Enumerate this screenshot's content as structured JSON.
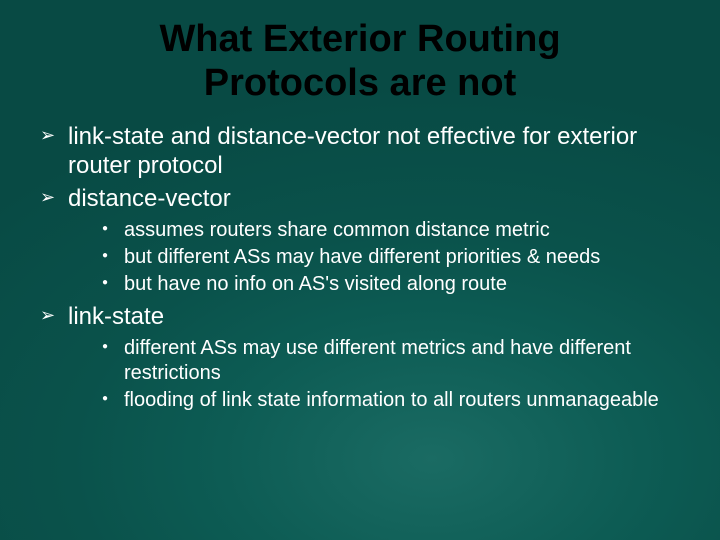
{
  "slide": {
    "background_inner": "#1a6b63",
    "background_outer": "#084a44",
    "title_color": "#000000",
    "text_color": "#ffffff",
    "title_fontsize": 38,
    "body_fontsize": 24,
    "sub_fontsize": 20,
    "title": "What Exterior Routing Protocols are not",
    "bullets": [
      {
        "text": "link-state and distance-vector not effective for exterior router protocol",
        "sub": []
      },
      {
        "text": "distance-vector",
        "sub": [
          "assumes routers share common distance metric",
          "but different ASs may have different priorities & needs",
          "but have no info on AS's visited along route"
        ]
      },
      {
        "text": "link-state",
        "sub": [
          "different ASs may use different metrics and have different restrictions",
          "flooding of link state information to all routers unmanageable"
        ]
      }
    ]
  }
}
